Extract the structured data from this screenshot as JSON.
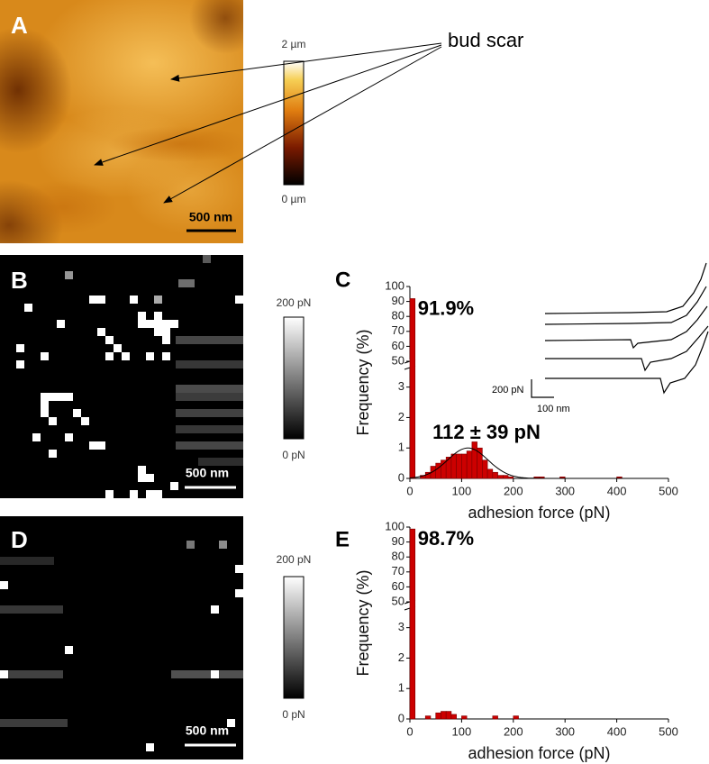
{
  "figure": {
    "A": {
      "label": "A",
      "annotation": "bud scar",
      "scale_bar": "500 nm",
      "colorbar_max": "2 µm",
      "colorbar_min": "0 µm"
    },
    "B": {
      "label": "B",
      "scale_bar": "500 nm",
      "colorbar_max": "200 pN",
      "colorbar_min": "0 pN"
    },
    "D": {
      "label": "D",
      "scale_bar": "500 nm",
      "colorbar_max": "200 pN",
      "colorbar_min": "0 pN"
    }
  },
  "chart_data": [
    {
      "type": "histogram",
      "panel_label": "C",
      "x_label": "adhesion force (pN)",
      "y_label": "Frequency (%)",
      "color": "#cc0000",
      "bins": [
        0,
        10,
        20,
        30,
        40,
        50,
        60,
        70,
        80,
        90,
        100,
        110,
        120,
        130,
        140,
        150,
        160,
        170,
        180,
        190,
        200,
        210,
        220,
        230,
        240,
        250,
        260,
        270,
        280,
        290,
        300,
        310,
        320,
        330,
        340,
        350,
        360,
        370,
        380,
        390,
        400,
        410,
        420,
        430,
        440,
        450,
        460,
        470,
        480,
        490,
        500
      ],
      "values": [
        91.9,
        0,
        0.1,
        0.2,
        0.4,
        0.5,
        0.6,
        0.7,
        0.8,
        0.8,
        0.8,
        0.9,
        1.2,
        1.0,
        0.6,
        0.3,
        0.2,
        0.1,
        0.1,
        0.05,
        0,
        0,
        0,
        0,
        0.05,
        0.05,
        0,
        0,
        0,
        0.05,
        0,
        0,
        0,
        0,
        0,
        0,
        0,
        0,
        0,
        0,
        0.05,
        0,
        0,
        0,
        0,
        0,
        0,
        0,
        0,
        0
      ],
      "value_labels": [
        "91.9%",
        null,
        null,
        null,
        null,
        null,
        null,
        null,
        null,
        null,
        null,
        null,
        null,
        null,
        null,
        null,
        null,
        null,
        null,
        null,
        null,
        null,
        null,
        null,
        null,
        null,
        null,
        null,
        null,
        null,
        null,
        null,
        null,
        null,
        null,
        null,
        null,
        null,
        null,
        null,
        null,
        null,
        null,
        null,
        null,
        null,
        null,
        null,
        null,
        null
      ],
      "fit": {
        "mean": 112,
        "sd": 39,
        "peak": 1.0
      },
      "fit_label": "112 ± 39 pN",
      "inset": {
        "y_scale": "200 pN",
        "x_scale": "100 nm"
      },
      "xlim": [
        0,
        500
      ],
      "xticks": [
        0,
        100,
        200,
        300,
        400,
        500
      ],
      "ylim": [
        0,
        100
      ],
      "y_break": [
        3.7,
        50
      ],
      "yticks": [
        0,
        1,
        2,
        3,
        50,
        60,
        70,
        80,
        90,
        100
      ]
    },
    {
      "type": "histogram",
      "panel_label": "E",
      "x_label": "adhesion force (pN)",
      "y_label": "Frequency (%)",
      "color": "#cc0000",
      "bins": [
        0,
        10,
        20,
        30,
        40,
        50,
        60,
        70,
        80,
        90,
        100,
        110,
        120,
        130,
        140,
        150,
        160,
        170,
        180,
        190,
        200,
        210,
        220,
        230,
        240,
        250,
        260,
        270,
        280,
        290,
        300,
        310,
        320,
        330,
        340,
        350,
        360,
        370,
        380,
        390,
        400,
        410,
        420,
        430,
        440,
        450,
        460,
        470,
        480,
        490,
        500
      ],
      "values": [
        98.7,
        0,
        0,
        0.1,
        0,
        0.2,
        0.25,
        0.25,
        0.15,
        0,
        0.1,
        0,
        0,
        0,
        0,
        0,
        0.1,
        0,
        0,
        0,
        0.1,
        0,
        0,
        0,
        0,
        0,
        0,
        0,
        0,
        0,
        0,
        0,
        0,
        0,
        0,
        0,
        0,
        0,
        0,
        0,
        0,
        0,
        0,
        0,
        0,
        0,
        0,
        0,
        0,
        0
      ],
      "value_labels": [
        "98.7%",
        null,
        null,
        null,
        null,
        null,
        null,
        null,
        null,
        null,
        null,
        null,
        null,
        null,
        null,
        null,
        null,
        null,
        null,
        null,
        null,
        null,
        null,
        null,
        null,
        null,
        null,
        null,
        null,
        null,
        null,
        null,
        null,
        null,
        null,
        null,
        null,
        null,
        null,
        null,
        null,
        null,
        null,
        null,
        null,
        null,
        null,
        null,
        null,
        null
      ],
      "xlim": [
        0,
        500
      ],
      "xticks": [
        0,
        100,
        200,
        300,
        400,
        500
      ],
      "ylim": [
        0,
        100
      ],
      "y_break": [
        3.7,
        50
      ],
      "yticks": [
        0,
        1,
        2,
        3,
        50,
        60,
        70,
        80,
        90,
        100
      ]
    }
  ]
}
